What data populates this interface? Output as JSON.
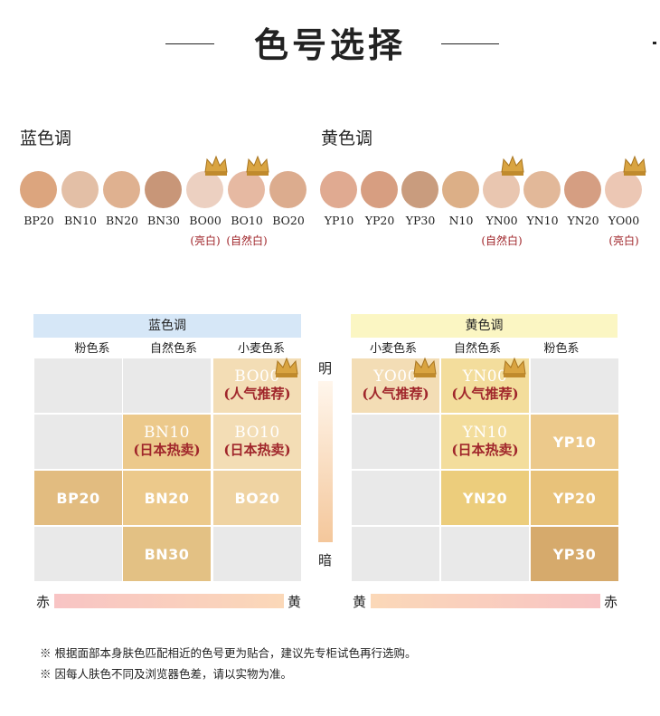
{
  "header": {
    "title": "色号选择"
  },
  "swatches": {
    "blue": {
      "title": "蓝色调",
      "items": [
        {
          "code": "BP20",
          "color": "#dca57e",
          "crown": false,
          "sub": ""
        },
        {
          "code": "BN10",
          "color": "#e3bfa6",
          "crown": false,
          "sub": ""
        },
        {
          "code": "BN20",
          "color": "#dfb190",
          "crown": false,
          "sub": ""
        },
        {
          "code": "BN30",
          "color": "#c89678",
          "crown": false,
          "sub": ""
        },
        {
          "code": "BO00",
          "color": "#ecd0c1",
          "crown": true,
          "sub": "(亮白)"
        },
        {
          "code": "BO10",
          "color": "#e6b9a2",
          "crown": true,
          "sub": "(自然白)"
        },
        {
          "code": "BO20",
          "color": "#dcac8e",
          "crown": false,
          "sub": ""
        }
      ]
    },
    "yellow": {
      "title": "黄色调",
      "items": [
        {
          "code": "YP10",
          "color": "#e0aa91",
          "crown": false,
          "sub": ""
        },
        {
          "code": "YP20",
          "color": "#d79e81",
          "crown": false,
          "sub": ""
        },
        {
          "code": "YP30",
          "color": "#c99c7e",
          "crown": false,
          "sub": ""
        },
        {
          "code": "N10",
          "color": "#dcaf87",
          "crown": false,
          "sub": ""
        },
        {
          "code": "YN00",
          "color": "#e9c6b0",
          "crown": true,
          "sub": "(自然白)"
        },
        {
          "code": "YN10",
          "color": "#e2b899",
          "crown": false,
          "sub": ""
        },
        {
          "code": "YN20",
          "color": "#d59e82",
          "crown": false,
          "sub": ""
        },
        {
          "code": "YO00",
          "color": "#ecc7b4",
          "crown": true,
          "sub": "(亮白)"
        }
      ]
    }
  },
  "matrix": {
    "left": {
      "title": "蓝色调",
      "columns": [
        "粉色系",
        "自然色系",
        "小麦色系"
      ],
      "cells": {
        "bo00": {
          "code": "BO00",
          "note": "(人气推荐)"
        },
        "bn10": {
          "code": "BN10",
          "note": "(日本热卖)"
        },
        "bo10": {
          "code": "BO10",
          "note": "(日本热卖)"
        },
        "bp20": {
          "code": "BP20"
        },
        "bn20": {
          "code": "BN20"
        },
        "bo20": {
          "code": "BO20"
        },
        "bn30": {
          "code": "BN30"
        }
      },
      "bar": {
        "start": "赤",
        "end": "黄"
      }
    },
    "right": {
      "title": "黄色调",
      "columns": [
        "小麦色系",
        "自然色系",
        "粉色系"
      ],
      "cells": {
        "yo00": {
          "code": "YO00",
          "note": "(人气推荐)"
        },
        "yn00": {
          "code": "YN00",
          "note": "(人气推荐)"
        },
        "yp10": {
          "code": "YP10"
        },
        "yn10": {
          "code": "YN10",
          "note": "(日本热卖)"
        },
        "yn20": {
          "code": "YN20"
        },
        "yp20": {
          "code": "YP20"
        },
        "yp30": {
          "code": "YP30"
        }
      },
      "bar": {
        "start": "黄",
        "end": "赤"
      }
    },
    "vertical": {
      "top": "明",
      "bottom": "暗"
    }
  },
  "footnotes": [
    "※ 根据面部本身肤色匹配相近的色号更为贴合，建议先专柜试色再行选购。",
    "※ 因每人肤色不同及浏览器色差，请以实物为准。"
  ],
  "colors": {
    "blue_header": "#d6e7f7",
    "yellow_header": "#fbf6c3",
    "note_red": "#a0262b"
  }
}
